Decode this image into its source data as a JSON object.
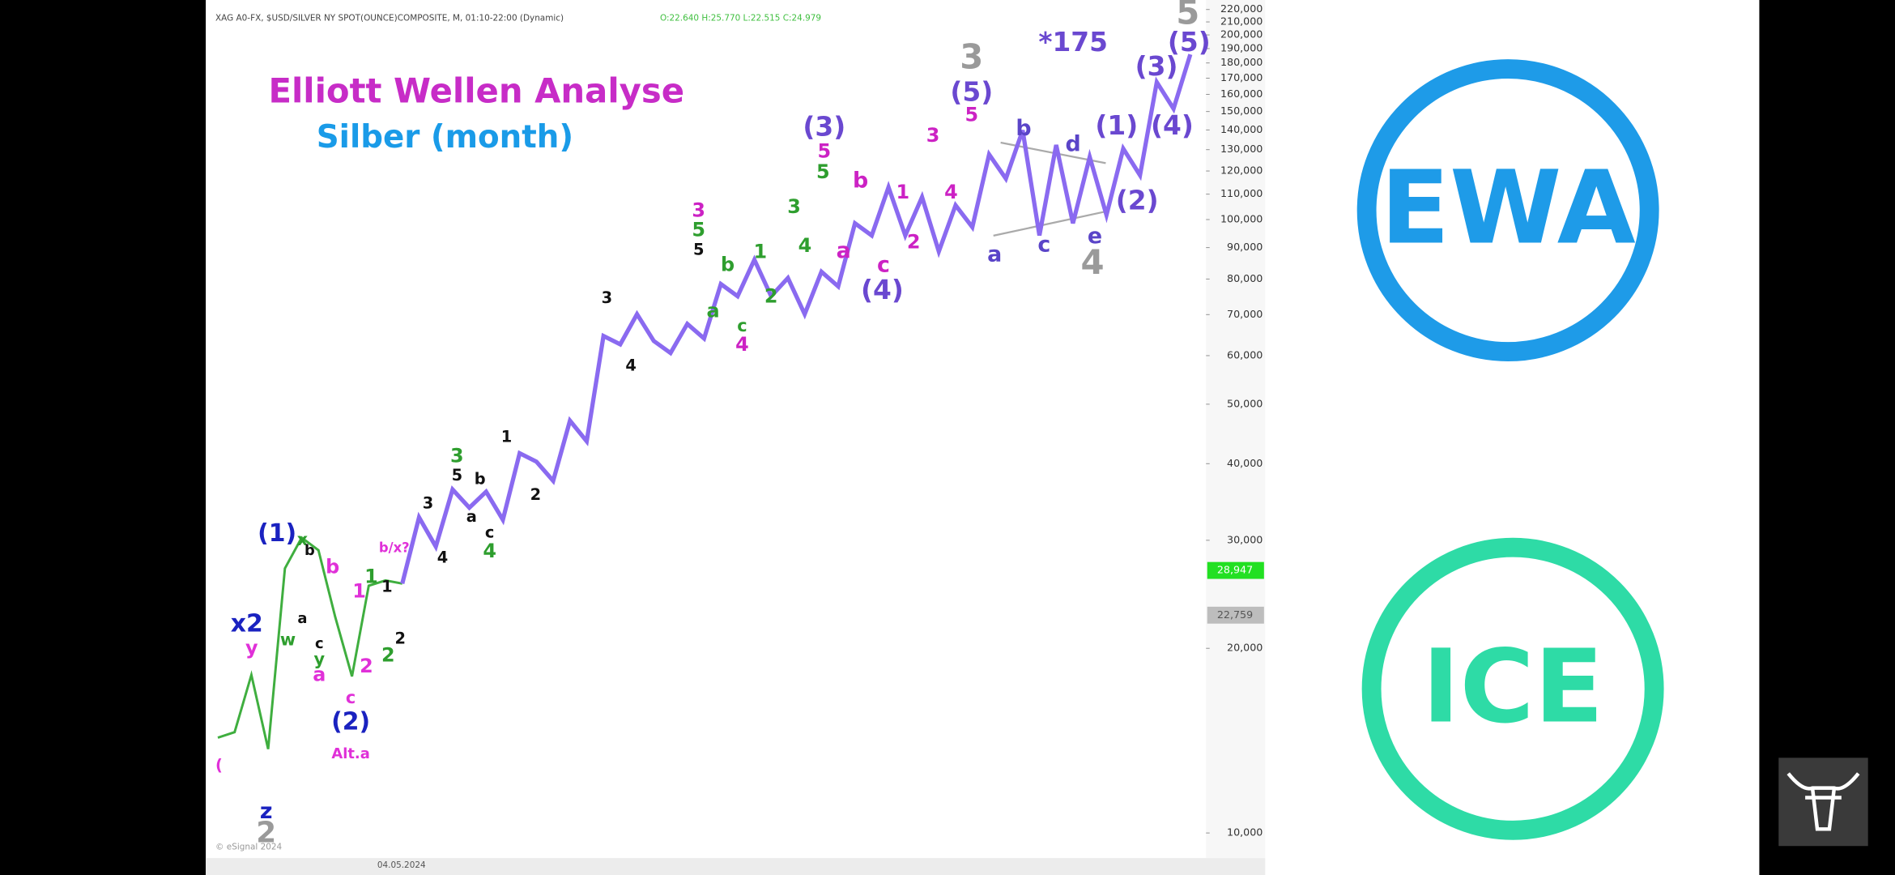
{
  "chart_data": {
    "type": "line",
    "title": "Elliott Wellen Analyse",
    "subtitle": "Silber (month)",
    "header": "XAG A0-FX, $USD/SILVER NY SPOT(OUNCE)COMPOSITE, M, 01:10-22:00 (Dynamic)",
    "ohlc": "O:22.640 H:25.770 L:22.515 C:24.979",
    "x_label": "04.05.2024",
    "copyright": "© eSignal 2024",
    "categories": [
      null,
      null,
      null,
      null,
      null,
      null,
      null,
      null,
      null,
      null,
      null,
      null,
      null,
      null,
      null,
      null,
      null,
      null,
      null,
      null,
      null,
      null,
      null,
      null,
      null,
      null,
      null,
      null,
      null,
      null,
      null,
      null,
      null,
      null,
      null,
      null,
      null,
      null,
      null,
      null,
      null,
      null,
      null,
      null,
      null,
      null,
      null,
      null,
      null,
      null,
      null,
      null,
      null,
      null,
      null,
      null,
      null,
      null,
      null
    ],
    "series": [
      {
        "color": "#3fae3f",
        "values": [
          14300,
          14600,
          18100,
          13700,
          27000,
          30300,
          28900,
          22500,
          18000,
          25300,
          25800,
          25500,
          null,
          null,
          null,
          null,
          null,
          null,
          null,
          null,
          null,
          null,
          null,
          null,
          null,
          null,
          null,
          null,
          null,
          null,
          null,
          null,
          null,
          null,
          null,
          null,
          null,
          null,
          null,
          null,
          null,
          null,
          null,
          null,
          null,
          null,
          null,
          null,
          null,
          null,
          null,
          null,
          null,
          null,
          null,
          null,
          null,
          null,
          null
        ]
      },
      {
        "color": "#8a6af0",
        "values": [
          null,
          null,
          null,
          null,
          null,
          null,
          null,
          null,
          null,
          null,
          null,
          25500,
          32700,
          29300,
          36300,
          33900,
          36000,
          32400,
          41600,
          40300,
          37500,
          47000,
          43500,
          64600,
          62600,
          70100,
          63400,
          60600,
          67600,
          64000,
          78500,
          75000,
          86000,
          75000,
          80300,
          70100,
          82200,
          77800,
          98600,
          94200,
          112900,
          94200,
          108800,
          88700,
          105500,
          97200,
          127700,
          116600,
          139800,
          94200,
          132300,
          98600,
          126500,
          101700,
          130500,
          118100,
          167500,
          151600,
          185900
        ]
      }
    ],
    "ylim": [
      9100,
      228000
    ],
    "log_scale": true,
    "grid": false,
    "yticks": [
      {
        "value": 10000,
        "label": "10,000"
      },
      {
        "value": 20000,
        "label": "20,000"
      },
      {
        "value": 30000,
        "label": "30,000"
      },
      {
        "value": 40000,
        "label": "40,000"
      },
      {
        "value": 50000,
        "label": "50,000"
      },
      {
        "value": 60000,
        "label": "60,000"
      },
      {
        "value": 70000,
        "label": "70,000"
      },
      {
        "value": 80000,
        "label": "80,000"
      },
      {
        "value": 90000,
        "label": "90,000"
      },
      {
        "value": 100000,
        "label": "100,000"
      },
      {
        "value": 110000,
        "label": "110,000"
      },
      {
        "value": 120000,
        "label": "120,000"
      },
      {
        "value": 130000,
        "label": "130,000"
      },
      {
        "value": 140000,
        "label": "140,000"
      },
      {
        "value": 150000,
        "label": "150,000"
      },
      {
        "value": 160000,
        "label": "160,000"
      },
      {
        "value": 170000,
        "label": "170,000"
      },
      {
        "value": 180000,
        "label": "180,000"
      },
      {
        "value": 190000,
        "label": "190,000"
      },
      {
        "value": 200000,
        "label": "200,000"
      },
      {
        "value": 210000,
        "label": "210,000"
      },
      {
        "value": 220000,
        "label": "220,000"
      }
    ],
    "price_tags": [
      {
        "label": "28,947",
        "color": "#22e022"
      },
      {
        "label": "22,759",
        "color": "#bdbdbd"
      }
    ],
    "annotations": [
      {
        "text": "(3)",
        "color": "#6a48d0"
      },
      {
        "text": "5",
        "color": "#cc22c4"
      },
      {
        "text": "5",
        "color": "#2e9e2e"
      },
      {
        "text": "b",
        "color": "#cc22c4"
      },
      {
        "text": "a",
        "color": "#cc22c4"
      },
      {
        "text": "1",
        "color": "#cc22c4"
      },
      {
        "text": "2",
        "color": "#cc22c4"
      },
      {
        "text": "c",
        "color": "#cc22c4"
      },
      {
        "text": "(4)",
        "color": "#6a48d0"
      },
      {
        "text": "3",
        "color": "#2e9e2e"
      },
      {
        "text": "4",
        "color": "#2e9e2e"
      },
      {
        "text": "3",
        "color": "#cc22c4"
      },
      {
        "text": "4",
        "color": "#cc22c4"
      },
      {
        "text": "3",
        "color": "#9a9a9a"
      },
      {
        "text": "(5)",
        "color": "#6a48d0"
      },
      {
        "text": "5",
        "color": "#cc22c4"
      },
      {
        "text": "*175",
        "color": "#6a48d0"
      },
      {
        "text": "b",
        "color": "#5a44c8"
      },
      {
        "text": "d",
        "color": "#5a44c8"
      },
      {
        "text": "a",
        "color": "#5a44c8"
      },
      {
        "text": "c",
        "color": "#5a44c8"
      },
      {
        "text": "e",
        "color": "#5a44c8"
      },
      {
        "text": "4",
        "color": "#9a9a9a"
      },
      {
        "text": "(1)",
        "color": "#6a48d0"
      },
      {
        "text": "(2)",
        "color": "#6a48d0"
      },
      {
        "text": "(3)",
        "color": "#6a48d0"
      },
      {
        "text": "(4)",
        "color": "#6a48d0"
      },
      {
        "text": "(5)",
        "color": "#6a48d0"
      },
      {
        "text": "5",
        "color": "#9a9a9a"
      },
      {
        "text": "3",
        "color": "#cc22c4"
      },
      {
        "text": "5",
        "color": "#2e9e2e"
      },
      {
        "text": "5",
        "color": "#111111"
      },
      {
        "text": "b",
        "color": "#2e9e2e"
      },
      {
        "text": "a",
        "color": "#2e9e2e"
      },
      {
        "text": "1",
        "color": "#2e9e2e"
      },
      {
        "text": "2",
        "color": "#2e9e2e"
      },
      {
        "text": "c",
        "color": "#2e9e2e"
      },
      {
        "text": "4",
        "color": "#cc22c4"
      },
      {
        "text": "3",
        "color": "#111111"
      },
      {
        "text": "4",
        "color": "#111111"
      },
      {
        "text": "1",
        "color": "#111111"
      },
      {
        "text": "2",
        "color": "#111111"
      },
      {
        "text": "3",
        "color": "#2e9e2e"
      },
      {
        "text": "5",
        "color": "#111111"
      },
      {
        "text": "b",
        "color": "#111111"
      },
      {
        "text": "a",
        "color": "#111111"
      },
      {
        "text": "c",
        "color": "#111111"
      },
      {
        "text": "4",
        "color": "#2e9e2e"
      },
      {
        "text": "3",
        "color": "#111111"
      },
      {
        "text": "4",
        "color": "#111111"
      },
      {
        "text": "b/x?",
        "color": "#e030d8"
      },
      {
        "text": "1",
        "color": "#2e9e2e"
      },
      {
        "text": "1",
        "color": "#111111"
      },
      {
        "text": "2",
        "color": "#2e9e2e"
      },
      {
        "text": "2",
        "color": "#111111"
      },
      {
        "text": "(1)",
        "color": "#1a22c0"
      },
      {
        "text": "x",
        "color": "#2e9e2e"
      },
      {
        "text": "b",
        "color": "#111111"
      },
      {
        "text": "b",
        "color": "#e030d8"
      },
      {
        "text": "1",
        "color": "#e030d8"
      },
      {
        "text": "a",
        "color": "#111111"
      },
      {
        "text": "w",
        "color": "#2e9e2e"
      },
      {
        "text": "c",
        "color": "#111111"
      },
      {
        "text": "y",
        "color": "#2e9e2e"
      },
      {
        "text": "a",
        "color": "#e030d8"
      },
      {
        "text": "2",
        "color": "#e030d8"
      },
      {
        "text": "x2",
        "color": "#1a22c0"
      },
      {
        "text": "y",
        "color": "#e030d8"
      },
      {
        "text": "c",
        "color": "#e030d8"
      },
      {
        "text": "(2)",
        "color": "#1a22c0"
      },
      {
        "text": "Alt.a",
        "color": "#e030d8"
      },
      {
        "text": "z",
        "color": "#1a22c0"
      },
      {
        "text": "2",
        "color": "#9a9a9a"
      },
      {
        "text": "(",
        "color": "#e030d8"
      }
    ]
  },
  "logos": [
    {
      "text": "EWA",
      "color": "#1e9be8"
    },
    {
      "text": "ICE",
      "color": "#2edba6"
    }
  ]
}
